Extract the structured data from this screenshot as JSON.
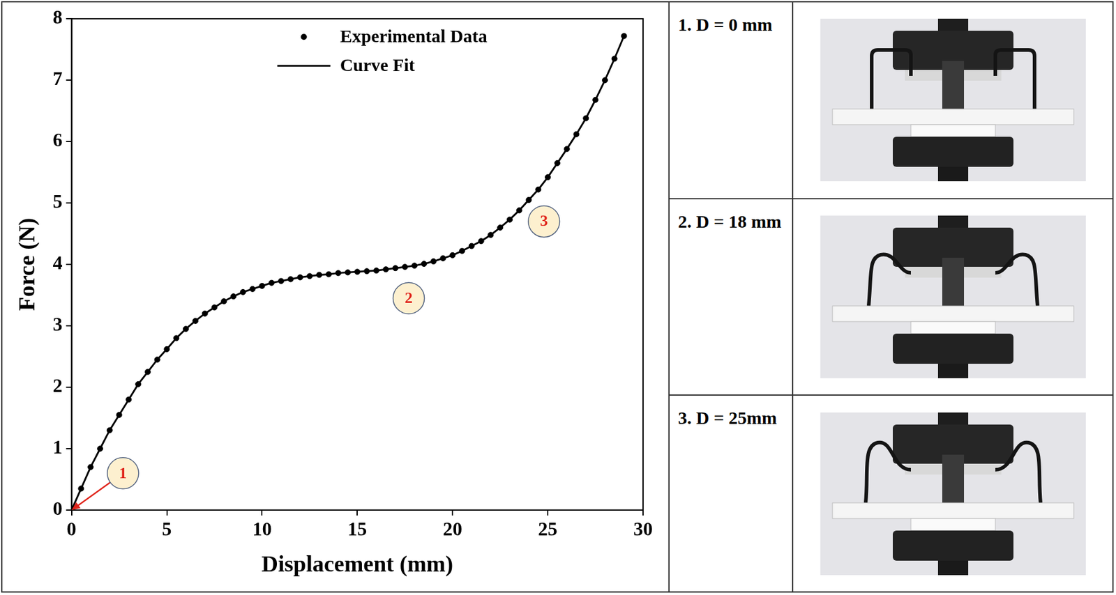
{
  "chart_data": {
    "type": "scatter",
    "x_label": "Displacement (mm)",
    "y_label": "Force (N)",
    "xlim": [
      0,
      30
    ],
    "xticks": [
      0,
      5,
      10,
      15,
      20,
      25,
      30
    ],
    "ylim": [
      0,
      8
    ],
    "yticks": [
      0,
      1,
      2,
      3,
      4,
      5,
      6,
      7,
      8
    ],
    "grid": false,
    "legend": "upper right",
    "x": [
      0,
      0.5,
      1,
      1.5,
      2,
      2.5,
      3,
      3.5,
      4,
      4.5,
      5,
      5.5,
      6,
      6.5,
      7,
      7.5,
      8,
      8.5,
      9,
      9.5,
      10,
      10.5,
      11,
      11.5,
      12,
      12.5,
      13,
      13.5,
      14,
      14.5,
      15,
      15.5,
      16,
      16.5,
      17,
      17.5,
      18,
      18.5,
      19,
      19.5,
      20,
      20.5,
      21,
      21.5,
      22,
      22.5,
      23,
      23.5,
      24,
      24.5,
      25,
      25.5,
      26,
      26.5,
      27,
      27.5,
      28,
      28.5,
      29
    ],
    "series": [
      {
        "name": "Experimental Data",
        "type": "scatter",
        "color": "#000000",
        "marker": "circle",
        "values": [
          0,
          0.35,
          0.7,
          1.0,
          1.3,
          1.55,
          1.8,
          2.05,
          2.25,
          2.45,
          2.62,
          2.8,
          2.95,
          3.08,
          3.2,
          3.3,
          3.4,
          3.48,
          3.55,
          3.6,
          3.65,
          3.7,
          3.73,
          3.76,
          3.79,
          3.81,
          3.83,
          3.84,
          3.86,
          3.87,
          3.88,
          3.89,
          3.9,
          3.92,
          3.94,
          3.96,
          3.98,
          4.01,
          4.05,
          4.1,
          4.15,
          4.22,
          4.3,
          4.38,
          4.48,
          4.6,
          4.73,
          4.88,
          5.05,
          5.22,
          5.42,
          5.65,
          5.88,
          6.12,
          6.38,
          6.68,
          7.0,
          7.35,
          7.72
        ]
      },
      {
        "name": "Curve Fit",
        "type": "line",
        "color": "#000000",
        "line_style": "solid",
        "values": [
          0,
          0.35,
          0.7,
          1.0,
          1.3,
          1.55,
          1.8,
          2.05,
          2.25,
          2.45,
          2.62,
          2.8,
          2.95,
          3.08,
          3.2,
          3.3,
          3.4,
          3.48,
          3.55,
          3.6,
          3.65,
          3.7,
          3.73,
          3.76,
          3.79,
          3.81,
          3.83,
          3.84,
          3.86,
          3.87,
          3.88,
          3.89,
          3.9,
          3.92,
          3.94,
          3.96,
          3.98,
          4.01,
          4.05,
          4.1,
          4.15,
          4.22,
          4.3,
          4.38,
          4.48,
          4.6,
          4.73,
          4.88,
          5.05,
          5.22,
          5.42,
          5.65,
          5.88,
          6.12,
          6.38,
          6.68,
          7.0,
          7.35,
          7.72
        ]
      }
    ],
    "annotations": [
      {
        "text": "1",
        "x": 2.7,
        "y": 0.6,
        "arrow_to": [
          0,
          0
        ]
      },
      {
        "text": "2",
        "x": 17.7,
        "y": 3.45
      },
      {
        "text": "3",
        "x": 24.8,
        "y": 4.7
      }
    ]
  },
  "panels": [
    {
      "label": "1. D = 0 mm"
    },
    {
      "label": "2. D = 18 mm"
    },
    {
      "label": "3. D = 25mm"
    }
  ]
}
